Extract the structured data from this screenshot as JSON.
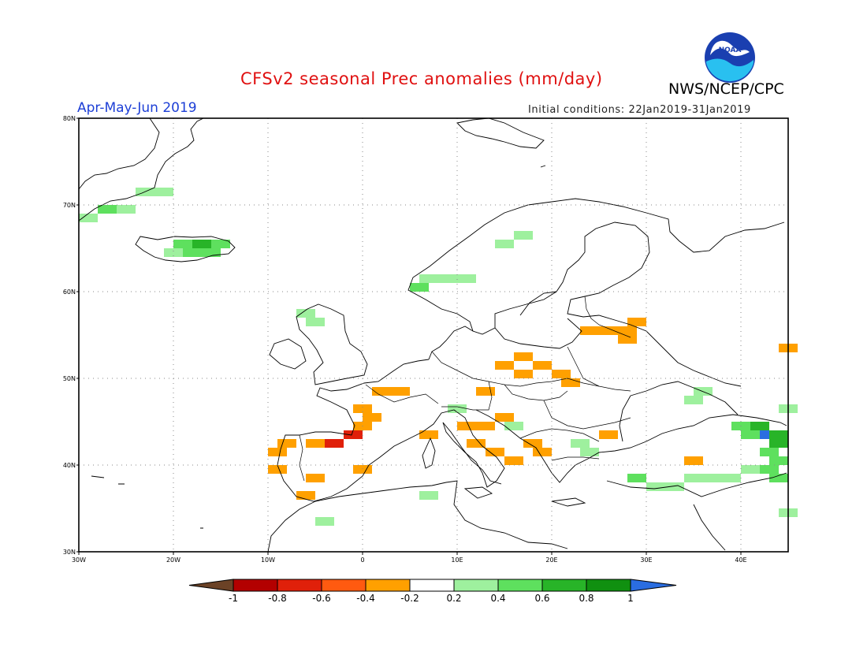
{
  "header": {
    "title": "CFSv2 seasonal Prec anomalies (mm/day)",
    "org": "NWS/NCEP/CPC",
    "period": "Apr-May-Jun 2019",
    "initial_conditions": "Initial conditions: 22Jan2019-31Jan2019",
    "logo_text": "NOAA"
  },
  "map": {
    "lon_labels": [
      "30W",
      "20W",
      "10W",
      "0",
      "10E",
      "20E",
      "30E",
      "40E"
    ],
    "lat_labels": [
      "80N",
      "70N",
      "60N",
      "50N",
      "40N",
      "30N"
    ],
    "lon_range": [
      -30,
      45
    ],
    "lat_range": [
      30,
      80
    ],
    "grid": true
  },
  "colorbar": {
    "labels": [
      "-1",
      "-0.8",
      "-0.6",
      "-0.4",
      "-0.2",
      "0.2",
      "0.4",
      "0.6",
      "0.8",
      "1"
    ],
    "colors": [
      "#6b4226",
      "#b30000",
      "#e0200a",
      "#ff5a10",
      "#ffa000",
      "#ffffff",
      "#9ef09e",
      "#5ee05e",
      "#28b428",
      "#109010",
      "#2a6de0"
    ]
  },
  "anomalies": {
    "colors": {
      "wet_light": "#9ef09e",
      "wet_med": "#5ee05e",
      "wet_strong": "#28b428",
      "wet_max": "#2a6de0",
      "dry_light": "#ffa000",
      "dry_med": "#ff5a10",
      "dry_strong": "#e0200a"
    },
    "cells": [
      {
        "lon": -29,
        "lat": 68.5,
        "level": "wet_light"
      },
      {
        "lon": -27,
        "lat": 69.5,
        "level": "wet_med"
      },
      {
        "lon": -25,
        "lat": 69.5,
        "level": "wet_light"
      },
      {
        "lon": -23,
        "lat": 71.5,
        "level": "wet_light"
      },
      {
        "lon": -21,
        "lat": 71.5,
        "level": "wet_light"
      },
      {
        "lon": -20,
        "lat": 64.5,
        "level": "wet_light"
      },
      {
        "lon": -19,
        "lat": 65.5,
        "level": "wet_med"
      },
      {
        "lon": -18,
        "lat": 64.5,
        "level": "wet_med"
      },
      {
        "lon": -17,
        "lat": 65.5,
        "level": "wet_strong"
      },
      {
        "lon": -16,
        "lat": 64.5,
        "level": "wet_med"
      },
      {
        "lon": -15,
        "lat": 65.5,
        "level": "wet_med"
      },
      {
        "lon": -6,
        "lat": 57.5,
        "level": "wet_light"
      },
      {
        "lon": -5,
        "lat": 56.5,
        "level": "wet_light"
      },
      {
        "lon": 6,
        "lat": 60.5,
        "level": "wet_med"
      },
      {
        "lon": 7,
        "lat": 61.5,
        "level": "wet_light"
      },
      {
        "lon": 9,
        "lat": 61.5,
        "level": "wet_light"
      },
      {
        "lon": 11,
        "lat": 61.5,
        "level": "wet_light"
      },
      {
        "lon": 15,
        "lat": 65.5,
        "level": "wet_light"
      },
      {
        "lon": 17,
        "lat": 66.5,
        "level": "wet_light"
      },
      {
        "lon": 24,
        "lat": 55.5,
        "level": "dry_light"
      },
      {
        "lon": 26,
        "lat": 55.5,
        "level": "dry_light"
      },
      {
        "lon": 28,
        "lat": 55.5,
        "level": "dry_light"
      },
      {
        "lon": 29,
        "lat": 56.5,
        "level": "dry_light"
      },
      {
        "lon": 28,
        "lat": 54.5,
        "level": "dry_light"
      },
      {
        "lon": 15,
        "lat": 51.5,
        "level": "dry_light"
      },
      {
        "lon": 17,
        "lat": 52.5,
        "level": "dry_light"
      },
      {
        "lon": 19,
        "lat": 51.5,
        "level": "dry_light"
      },
      {
        "lon": 21,
        "lat": 50.5,
        "level": "dry_light"
      },
      {
        "lon": 22,
        "lat": 49.5,
        "level": "dry_light"
      },
      {
        "lon": 17,
        "lat": 50.5,
        "level": "dry_light"
      },
      {
        "lon": 2,
        "lat": 48.5,
        "level": "dry_light"
      },
      {
        "lon": 4,
        "lat": 48.5,
        "level": "dry_light"
      },
      {
        "lon": 0,
        "lat": 46.5,
        "level": "dry_light"
      },
      {
        "lon": 1,
        "lat": 45.5,
        "level": "dry_light"
      },
      {
        "lon": 0,
        "lat": 44.5,
        "level": "dry_light"
      },
      {
        "lon": -1,
        "lat": 43.5,
        "level": "dry_strong"
      },
      {
        "lon": -3,
        "lat": 42.5,
        "level": "dry_strong"
      },
      {
        "lon": -5,
        "lat": 42.5,
        "level": "dry_light"
      },
      {
        "lon": -8,
        "lat": 42.5,
        "level": "dry_light"
      },
      {
        "lon": -9,
        "lat": 41.5,
        "level": "dry_light"
      },
      {
        "lon": -9,
        "lat": 39.5,
        "level": "dry_light"
      },
      {
        "lon": -5,
        "lat": 38.5,
        "level": "dry_light"
      },
      {
        "lon": -6,
        "lat": 36.5,
        "level": "dry_light"
      },
      {
        "lon": 0,
        "lat": 39.5,
        "level": "dry_light"
      },
      {
        "lon": 13,
        "lat": 48.5,
        "level": "dry_light"
      },
      {
        "lon": 11,
        "lat": 44.5,
        "level": "dry_light"
      },
      {
        "lon": 13,
        "lat": 44.5,
        "level": "dry_light"
      },
      {
        "lon": 15,
        "lat": 45.5,
        "level": "dry_light"
      },
      {
        "lon": 7,
        "lat": 43.5,
        "level": "dry_light"
      },
      {
        "lon": 12,
        "lat": 42.5,
        "level": "dry_light"
      },
      {
        "lon": 14,
        "lat": 41.5,
        "level": "dry_light"
      },
      {
        "lon": 16,
        "lat": 40.5,
        "level": "dry_light"
      },
      {
        "lon": 18,
        "lat": 42.5,
        "level": "dry_light"
      },
      {
        "lon": 19,
        "lat": 41.5,
        "level": "dry_light"
      },
      {
        "lon": 26,
        "lat": 43.5,
        "level": "dry_light"
      },
      {
        "lon": 35,
        "lat": 40.5,
        "level": "dry_light"
      },
      {
        "lon": 16,
        "lat": 44.5,
        "level": "wet_light"
      },
      {
        "lon": 23,
        "lat": 42.5,
        "level": "wet_light"
      },
      {
        "lon": 24,
        "lat": 41.5,
        "level": "wet_light"
      },
      {
        "lon": 7,
        "lat": 36.5,
        "level": "wet_light"
      },
      {
        "lon": -4,
        "lat": 33.5,
        "level": "wet_light"
      },
      {
        "lon": 10,
        "lat": 46.5,
        "level": "wet_light"
      },
      {
        "lon": 29,
        "lat": 38.5,
        "level": "wet_med"
      },
      {
        "lon": 31,
        "lat": 37.5,
        "level": "wet_light"
      },
      {
        "lon": 33,
        "lat": 37.5,
        "level": "wet_light"
      },
      {
        "lon": 35,
        "lat": 38.5,
        "level": "wet_light"
      },
      {
        "lon": 37,
        "lat": 38.5,
        "level": "wet_light"
      },
      {
        "lon": 39,
        "lat": 38.5,
        "level": "wet_light"
      },
      {
        "lon": 41,
        "lat": 39.5,
        "level": "wet_light"
      },
      {
        "lon": 43,
        "lat": 39.5,
        "level": "wet_med"
      },
      {
        "lon": 44,
        "lat": 38.5,
        "level": "wet_med"
      },
      {
        "lon": 36,
        "lat": 48.5,
        "level": "wet_light"
      },
      {
        "lon": 35,
        "lat": 47.5,
        "level": "wet_light"
      },
      {
        "lon": 40,
        "lat": 44.5,
        "level": "wet_med"
      },
      {
        "lon": 42,
        "lat": 44.5,
        "level": "wet_strong"
      },
      {
        "lon": 43,
        "lat": 43.5,
        "level": "wet_max"
      },
      {
        "lon": 44,
        "lat": 43.5,
        "level": "wet_strong"
      },
      {
        "lon": 44,
        "lat": 42.5,
        "level": "wet_strong"
      },
      {
        "lon": 43,
        "lat": 41.5,
        "level": "wet_med"
      },
      {
        "lon": 44,
        "lat": 40.5,
        "level": "wet_med"
      },
      {
        "lon": 41,
        "lat": 43.5,
        "level": "wet_med"
      },
      {
        "lon": 45,
        "lat": 46.5,
        "level": "wet_light"
      },
      {
        "lon": 45,
        "lat": 53.5,
        "level": "dry_light"
      },
      {
        "lon": 45,
        "lat": 34.5,
        "level": "wet_light"
      }
    ]
  }
}
